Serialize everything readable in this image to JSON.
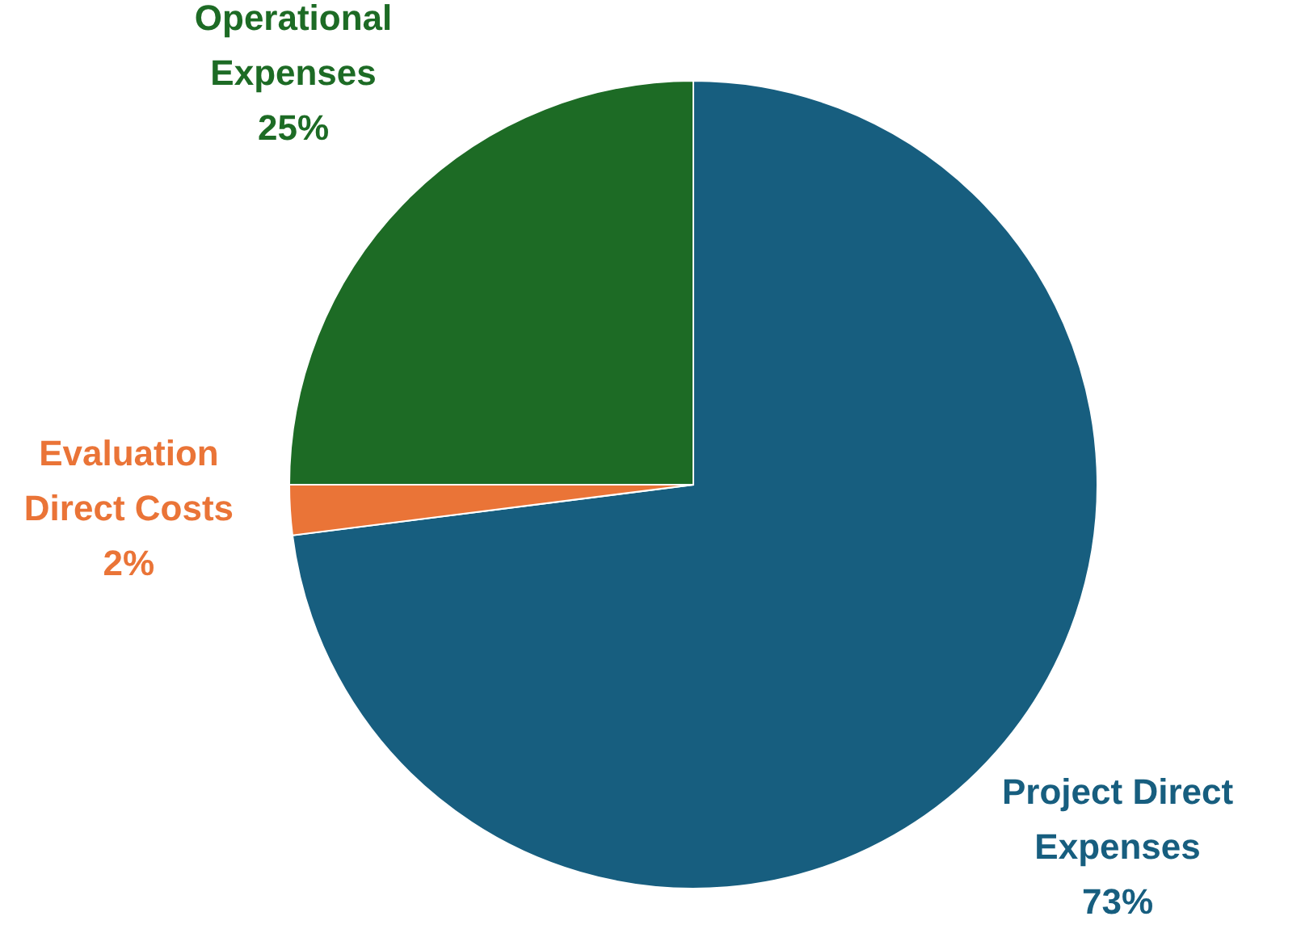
{
  "chart_data": {
    "type": "pie",
    "categories": [
      "Project Direct Expenses",
      "Evaluation Direct Costs",
      "Operational Expenses"
    ],
    "values": [
      73,
      2,
      25
    ],
    "value_labels": [
      "73%",
      "2%",
      "25%"
    ],
    "colors": [
      "#175e7f",
      "#ea7437",
      "#1d6b25"
    ],
    "legend": false
  }
}
